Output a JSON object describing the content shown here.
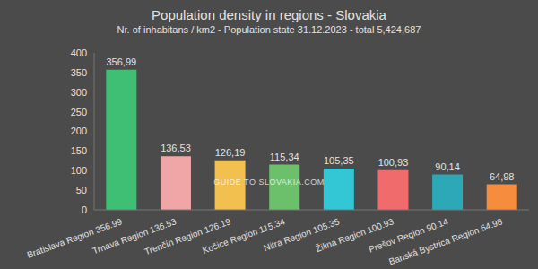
{
  "chart_data": {
    "type": "bar",
    "title": "Population density in regions - Slovakia",
    "subtitle": "Nr. of inhabitans / km2 - Population state 31.12.2023 - total 5,424,687",
    "annotations": [
      "GUIDE TO SLOVAKIA.COM"
    ],
    "categories": [
      "Bratislava Region  356.99",
      "Trnava Region  136.53",
      "Trenčín Region  126.19",
      "Košice Region  115.34",
      "Nitra Region  105.35",
      "Žilina Region  100.93",
      "Prešov Region  90.14",
      "Banská Bystrica Region  64.98"
    ],
    "values": [
      356.99,
      136.53,
      126.19,
      115.34,
      105.35,
      100.93,
      90.14,
      64.98
    ],
    "value_labels": [
      "356,99",
      "136,53",
      "126,19",
      "115,34",
      "105,35",
      "100,93",
      "90,14",
      "64,98"
    ],
    "colors": [
      "#3fbf74",
      "#f0a6a6",
      "#f2c04f",
      "#6cc06b",
      "#33c7d6",
      "#f06c6c",
      "#2ca8b6",
      "#f58c3e"
    ],
    "ylim": [
      0,
      400
    ],
    "yticks": [
      0,
      50,
      100,
      150,
      200,
      250,
      300,
      350,
      400
    ],
    "grid": false,
    "data_labels": true
  }
}
